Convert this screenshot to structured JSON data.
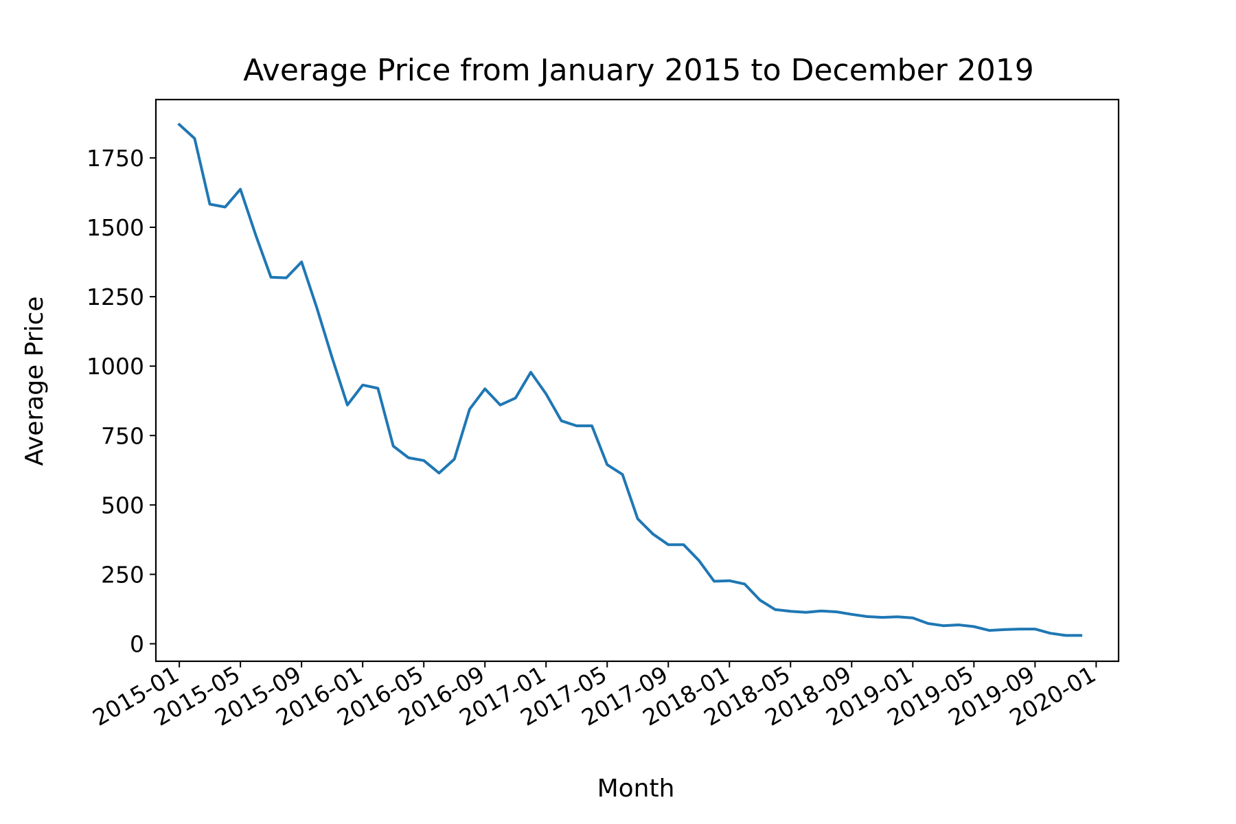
{
  "chart_data": {
    "type": "line",
    "title": "Average Price from January 2015 to December 2019",
    "xlabel": "Month",
    "ylabel": "Average Price",
    "x": [
      "2015-01",
      "2015-02",
      "2015-03",
      "2015-04",
      "2015-05",
      "2015-06",
      "2015-07",
      "2015-08",
      "2015-09",
      "2015-10",
      "2015-11",
      "2015-12",
      "2016-01",
      "2016-02",
      "2016-03",
      "2016-04",
      "2016-05",
      "2016-06",
      "2016-07",
      "2016-08",
      "2016-09",
      "2016-10",
      "2016-11",
      "2016-12",
      "2017-01",
      "2017-02",
      "2017-03",
      "2017-04",
      "2017-05",
      "2017-06",
      "2017-07",
      "2017-08",
      "2017-09",
      "2017-10",
      "2017-11",
      "2017-12",
      "2018-01",
      "2018-02",
      "2018-03",
      "2018-04",
      "2018-05",
      "2018-06",
      "2018-07",
      "2018-08",
      "2018-09",
      "2018-10",
      "2018-11",
      "2018-12",
      "2019-01",
      "2019-02",
      "2019-03",
      "2019-04",
      "2019-05",
      "2019-06",
      "2019-07",
      "2019-08",
      "2019-09",
      "2019-10",
      "2019-11",
      "2019-12"
    ],
    "series": [
      {
        "color": "#1f77b4",
        "values": [
          1870,
          1820,
          1583,
          1573,
          1637,
          1472,
          1320,
          1318,
          1375,
          1210,
          1030,
          860,
          932,
          920,
          712,
          670,
          660,
          615,
          665,
          845,
          918,
          860,
          885,
          978,
          900,
          803,
          785,
          785,
          645,
          610,
          450,
          395,
          357,
          357,
          300,
          225,
          227,
          215,
          157,
          123,
          117,
          113,
          118,
          115,
          106,
          98,
          95,
          97,
          93,
          73,
          65,
          68,
          62,
          48,
          51,
          53,
          53,
          38,
          30,
          30
        ]
      }
    ],
    "xticks": [
      "2015-01",
      "2015-05",
      "2015-09",
      "2016-01",
      "2016-05",
      "2016-09",
      "2017-01",
      "2017-05",
      "2017-09",
      "2018-01",
      "2018-05",
      "2018-09",
      "2019-01",
      "2019-05",
      "2019-09",
      "2020-01"
    ],
    "yticks": [
      0,
      250,
      500,
      750,
      1000,
      1250,
      1500,
      1750
    ],
    "ylim": [
      -63,
      1960
    ],
    "xlim": [
      "2014-11-15",
      "2020-02-15"
    ],
    "grid": false,
    "legend": "none"
  }
}
